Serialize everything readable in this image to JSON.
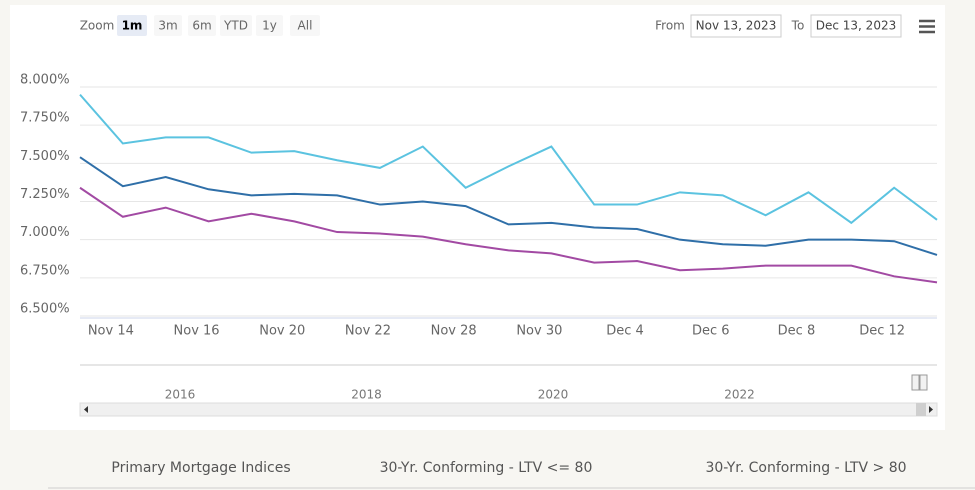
{
  "chart_data": {
    "type": "line",
    "range_selector": {
      "zoom_label": "Zoom",
      "buttons": [
        "1m",
        "3m",
        "6m",
        "YTD",
        "1y",
        "All"
      ],
      "selected": 0,
      "from_label": "From",
      "from_date": "Nov 13, 2023",
      "to_label": "To",
      "to_date": "Dec 13, 2023"
    },
    "categories": [
      null,
      "Nov 14",
      null,
      "Nov 16",
      null,
      "Nov 20",
      null,
      "Nov 22",
      null,
      "Nov 28",
      null,
      "Nov 30",
      null,
      "Dec 4",
      null,
      "Dec 6",
      null,
      "Dec 8",
      null,
      "Dec 12",
      null
    ],
    "series": [
      {
        "name": "Primary Mortgage Indices",
        "color": "#2f6fa8",
        "values": [
          7.54,
          7.35,
          7.41,
          7.33,
          7.29,
          7.3,
          7.29,
          7.23,
          7.25,
          7.22,
          7.1,
          7.11,
          7.08,
          7.07,
          7.0,
          6.97,
          6.96,
          7.0,
          7.0,
          6.99,
          6.9
        ]
      },
      {
        "name": "30-Yr. Conforming - LTV <= 80",
        "color": "#5bc3e0",
        "values": [
          7.95,
          7.63,
          7.67,
          7.67,
          7.57,
          7.58,
          7.52,
          7.47,
          7.61,
          7.34,
          7.48,
          7.61,
          7.23,
          7.23,
          7.31,
          7.29,
          7.16,
          7.31,
          7.11,
          7.34,
          7.13
        ]
      },
      {
        "name": "30-Yr. Conforming - LTV > 80",
        "color": "#a24aa3",
        "values": [
          7.34,
          7.15,
          7.21,
          7.12,
          7.17,
          7.12,
          7.05,
          7.04,
          7.02,
          6.97,
          6.93,
          6.91,
          6.85,
          6.86,
          6.8,
          6.81,
          6.83,
          6.83,
          6.83,
          6.76,
          6.72
        ]
      }
    ],
    "ylim": [
      6.5,
      8.0
    ],
    "yticks": [
      {
        "value": 6.5,
        "label": "6.500%"
      },
      {
        "value": 6.75,
        "label": "6.750%"
      },
      {
        "value": 7.0,
        "label": "7.000%"
      },
      {
        "value": 7.25,
        "label": "7.250%"
      },
      {
        "value": 7.5,
        "label": "7.500%"
      },
      {
        "value": 7.75,
        "label": "7.750%"
      },
      {
        "value": 8.0,
        "label": "8.000%"
      }
    ],
    "grid": true,
    "navigator_labels": [
      "2016",
      "2018",
      "2020",
      "2022"
    ]
  }
}
